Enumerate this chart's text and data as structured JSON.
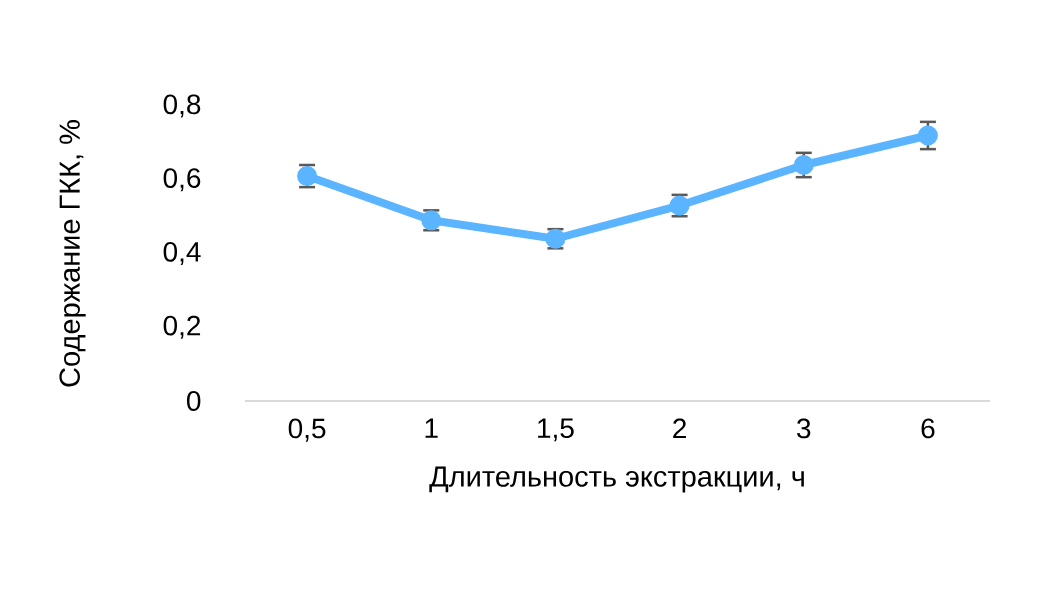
{
  "chart_data": {
    "type": "line",
    "xlabel": "Длительность экстракции, ч",
    "ylabel": "Содержание ГКК, %",
    "categories": [
      "0,5",
      "1",
      "1,5",
      "2",
      "3",
      "6"
    ],
    "values": [
      0.61,
      0.49,
      0.44,
      0.53,
      0.64,
      0.72
    ],
    "errors": [
      0.03,
      0.027,
      0.026,
      0.029,
      0.033,
      0.037
    ],
    "color": "#5ab4ff",
    "marker": "circle",
    "line_style": "solid",
    "ylim": [
      0,
      0.8
    ],
    "yticks": [
      {
        "value": 0,
        "label": "0"
      },
      {
        "value": 0.2,
        "label": "0,2"
      },
      {
        "value": 0.4,
        "label": "0,4"
      },
      {
        "value": 0.6,
        "label": "0,6"
      },
      {
        "value": 0.8,
        "label": "0,8"
      }
    ]
  }
}
